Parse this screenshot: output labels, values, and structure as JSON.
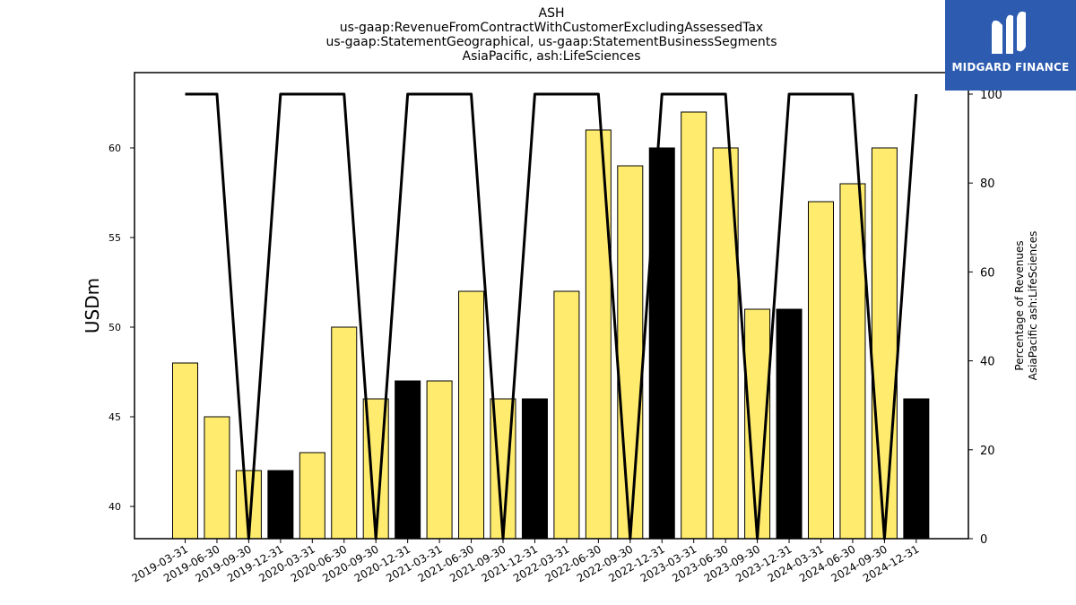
{
  "title_lines": [
    "ASH",
    "us-gaap:RevenueFromContractWithCustomerExcludingAssessedTax",
    "us-gaap:StatementGeographical, us-gaap:StatementBusinessSegments",
    "AsiaPacific, ash:LifeSciences"
  ],
  "logo": {
    "text": "MIDGARD FINANCE",
    "color": "#2c5bb0"
  },
  "chart_data": {
    "type": "bar",
    "categories": [
      "2019-03-31",
      "2019-06-30",
      "2019-09-30",
      "2019-12-31",
      "2020-03-31",
      "2020-06-30",
      "2020-09-30",
      "2020-12-31",
      "2021-03-31",
      "2021-06-30",
      "2021-09-30",
      "2021-12-31",
      "2022-03-31",
      "2022-06-30",
      "2022-09-30",
      "2022-12-31",
      "2023-03-31",
      "2023-06-30",
      "2023-09-30",
      "2023-12-31",
      "2024-03-31",
      "2024-06-30",
      "2024-09-30",
      "2024-12-31"
    ],
    "values": [
      48,
      45,
      42,
      42,
      43,
      50,
      46,
      47,
      47,
      52,
      46,
      46,
      52,
      61,
      59,
      60,
      62,
      60,
      51,
      51,
      57,
      58,
      60,
      46
    ],
    "bar_colors": [
      "#ffec6e",
      "#ffec6e",
      "#ffec6e",
      "#000000",
      "#ffec6e",
      "#ffec6e",
      "#ffec6e",
      "#000000",
      "#ffec6e",
      "#ffec6e",
      "#ffec6e",
      "#000000",
      "#ffec6e",
      "#ffec6e",
      "#ffec6e",
      "#000000",
      "#ffec6e",
      "#ffec6e",
      "#ffec6e",
      "#000000",
      "#ffec6e",
      "#ffec6e",
      "#ffec6e",
      "#000000"
    ],
    "ylabel": "USDm",
    "ylim": [
      38.2,
      64.2
    ],
    "yticks": [
      40,
      45,
      50,
      55,
      60
    ],
    "secondary": {
      "type": "line",
      "label_lines": [
        "Percentage of Revenues",
        "AsiaPacific ash:LifeSciences"
      ],
      "values": [
        100,
        100,
        0,
        100,
        100,
        100,
        0,
        100,
        100,
        100,
        0,
        100,
        100,
        100,
        0,
        100,
        100,
        100,
        0,
        100,
        100,
        100,
        0,
        100
      ],
      "ylim": [
        0,
        100
      ],
      "yticks": [
        0,
        20,
        40,
        60,
        80,
        100
      ],
      "color": "#000000"
    },
    "grid": false,
    "legend": "none"
  }
}
